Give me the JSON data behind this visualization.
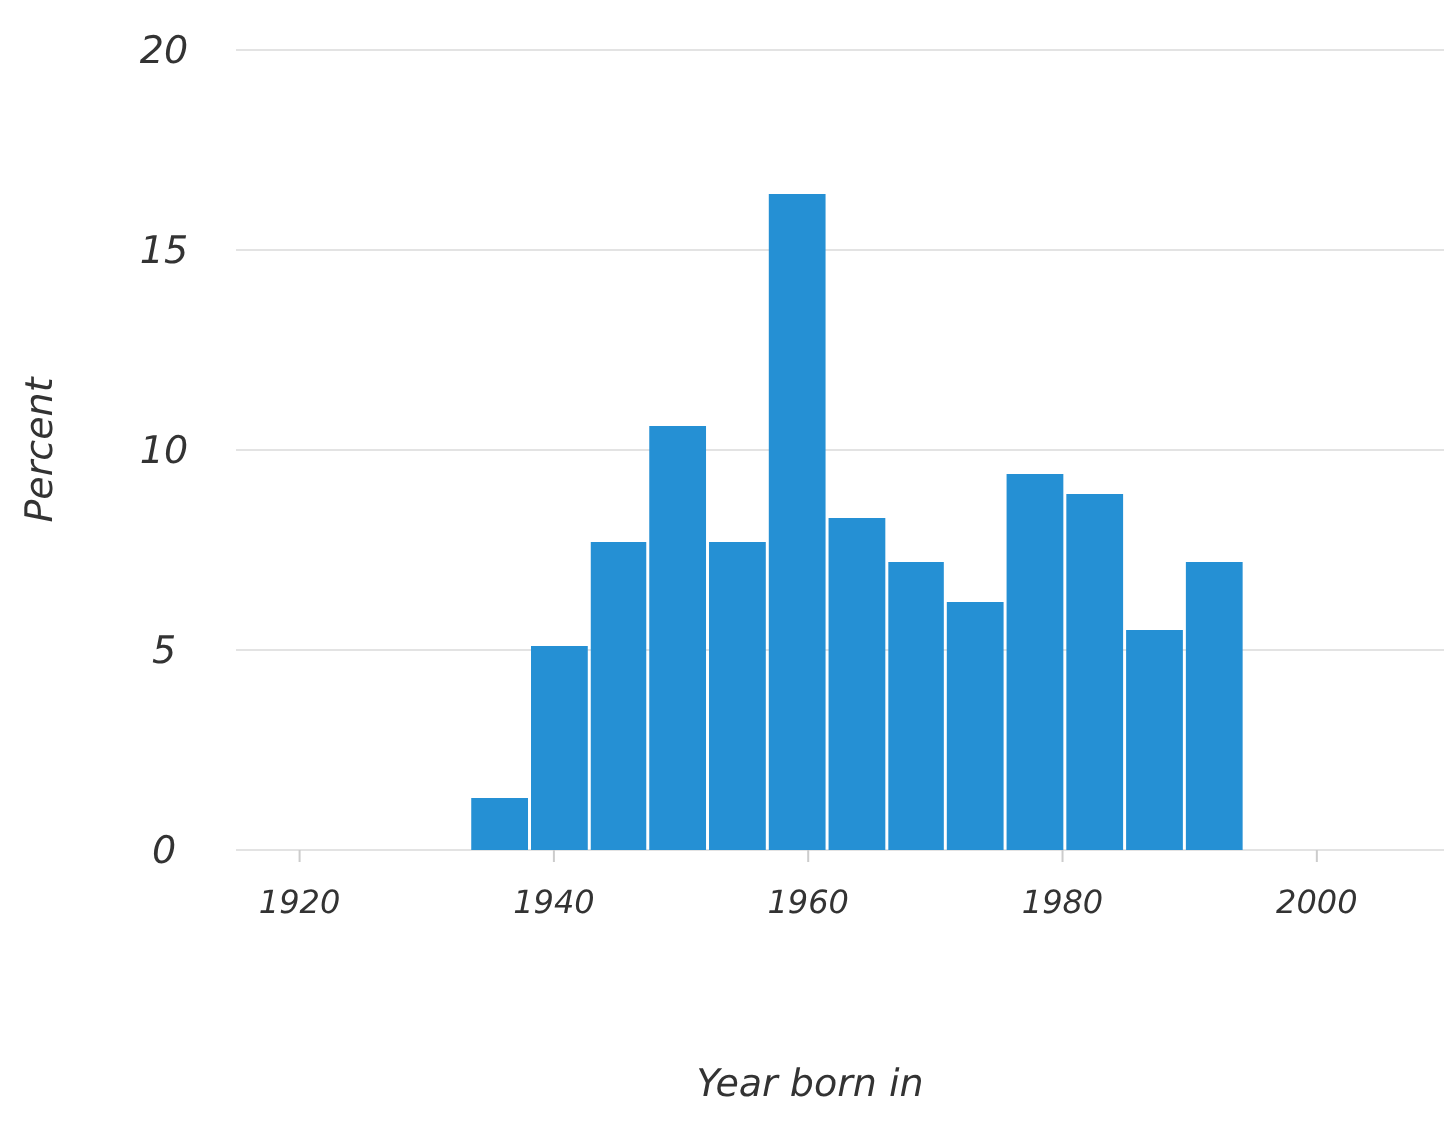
{
  "chart_data": {
    "type": "histogram",
    "xlabel": "Year born in",
    "ylabel": "Percent",
    "bins": [
      1933.5,
      1938.2,
      1942.9,
      1947.5,
      1952.2,
      1956.9,
      1961.6,
      1966.3,
      1970.9,
      1975.6,
      1980.3,
      1985,
      1989.7,
      1994.4
    ],
    "values": [
      1.3,
      5.1,
      7.7,
      10.6,
      7.7,
      16.4,
      8.3,
      7.2,
      6.2,
      9.4,
      8.9,
      5.5,
      7.2
    ],
    "color": "#2590d4",
    "xlim": [
      1915,
      2010
    ],
    "xticks": [
      1920,
      1940,
      1960,
      1980,
      2000
    ],
    "ylim": [
      0,
      20
    ],
    "yticks": [
      0,
      5,
      10,
      15,
      20
    ],
    "grid": "y"
  }
}
